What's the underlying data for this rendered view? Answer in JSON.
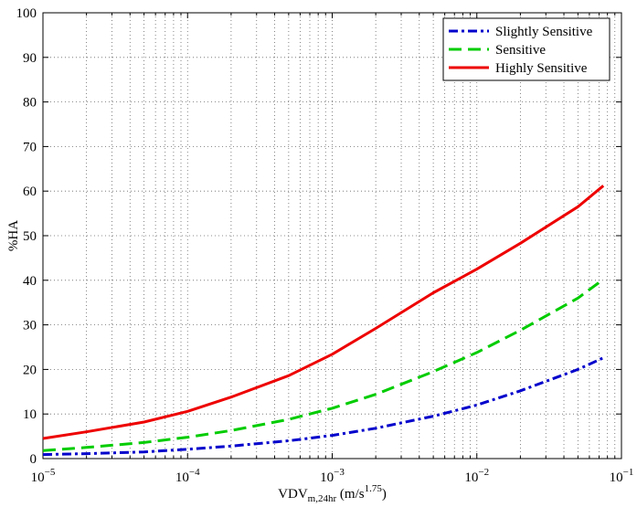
{
  "chart_data": {
    "type": "line",
    "x_scale": "log",
    "xlim": [
      1e-05,
      0.1
    ],
    "ylim": [
      0,
      100
    ],
    "grid": true,
    "xlabel": {
      "main": "VDV",
      "subscript": "m,24hr",
      "unit_prefix": " (m/s",
      "unit_exp": "1.75",
      "unit_suffix": ")"
    },
    "ylabel": "%HA",
    "x_ticks": [
      {
        "value": 1e-05,
        "base": "10",
        "exp": "−5"
      },
      {
        "value": 0.0001,
        "base": "10",
        "exp": "−4"
      },
      {
        "value": 0.001,
        "base": "10",
        "exp": "−3"
      },
      {
        "value": 0.01,
        "base": "10",
        "exp": "−2"
      },
      {
        "value": 0.1,
        "base": "10",
        "exp": "−1"
      }
    ],
    "y_ticks": [
      0,
      10,
      20,
      30,
      40,
      50,
      60,
      70,
      80,
      90,
      100
    ],
    "legend_position": "top-right",
    "series": [
      {
        "name": "Slightly Sensitive",
        "color": "#0000cc",
        "style": "dash-dot",
        "x": [
          1e-05,
          2e-05,
          5e-05,
          0.0001,
          0.0002,
          0.0005,
          0.001,
          0.002,
          0.005,
          0.01,
          0.02,
          0.05,
          0.075
        ],
        "y": [
          0.9,
          1.1,
          1.5,
          2.1,
          2.8,
          4.0,
          5.2,
          6.8,
          9.5,
          12.0,
          15.2,
          20.0,
          22.6
        ]
      },
      {
        "name": "Sensitive",
        "color": "#00cc00",
        "style": "dashed",
        "x": [
          1e-05,
          2e-05,
          5e-05,
          0.0001,
          0.0002,
          0.0005,
          0.001,
          0.002,
          0.005,
          0.01,
          0.02,
          0.05,
          0.075
        ],
        "y": [
          1.8,
          2.5,
          3.6,
          4.8,
          6.3,
          8.8,
          11.3,
          14.4,
          19.5,
          23.8,
          28.8,
          36.0,
          40.2
        ]
      },
      {
        "name": "Highly Sensitive",
        "color": "#ee0000",
        "style": "solid",
        "x": [
          1e-05,
          2e-05,
          5e-05,
          0.0001,
          0.0002,
          0.0005,
          0.001,
          0.002,
          0.005,
          0.01,
          0.02,
          0.05,
          0.075
        ],
        "y": [
          4.5,
          6.0,
          8.2,
          10.6,
          13.8,
          18.6,
          23.4,
          29.2,
          37.2,
          42.5,
          48.3,
          56.5,
          61.2
        ]
      }
    ]
  }
}
